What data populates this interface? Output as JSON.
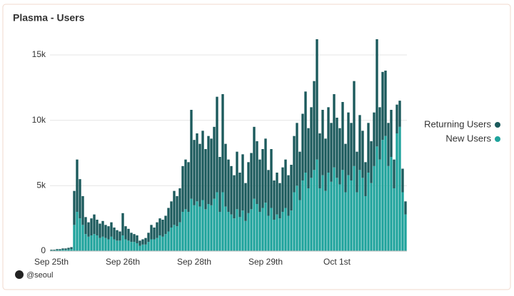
{
  "chart_data": {
    "type": "stacked_bar",
    "title": "Plasma - Users",
    "footer": "@seoul",
    "categories": [
      "Sep 25th",
      null,
      null,
      null,
      null,
      null,
      null,
      null,
      null,
      null,
      null,
      null,
      null,
      null,
      null,
      null,
      null,
      null,
      null,
      null,
      null,
      null,
      null,
      null,
      null,
      "Sep 26th",
      null,
      null,
      null,
      null,
      null,
      null,
      null,
      null,
      null,
      null,
      null,
      null,
      null,
      null,
      null,
      null,
      null,
      null,
      null,
      null,
      null,
      null,
      null,
      null,
      "Sep 28th",
      null,
      null,
      null,
      null,
      null,
      null,
      null,
      null,
      null,
      null,
      null,
      null,
      null,
      null,
      null,
      null,
      null,
      null,
      null,
      null,
      null,
      null,
      null,
      null,
      "Sep 29th",
      null,
      null,
      null,
      null,
      null,
      null,
      null,
      null,
      null,
      null,
      null,
      null,
      null,
      null,
      null,
      null,
      null,
      null,
      null,
      null,
      null,
      null,
      null,
      null,
      "Oct 1st",
      null,
      null,
      null,
      null,
      null,
      null,
      null,
      null,
      null,
      null,
      null,
      null,
      null,
      null,
      null,
      null,
      null,
      null,
      null,
      null,
      null,
      null,
      null,
      null
    ],
    "series": [
      {
        "name": "New Users",
        "color": "#1fa39c",
        "values": [
          50,
          50,
          80,
          80,
          100,
          100,
          120,
          150,
          2000,
          3000,
          2500,
          2000,
          1300,
          1100,
          1200,
          1300,
          1200,
          1000,
          1100,
          1000,
          900,
          1100,
          900,
          800,
          800,
          1200,
          900,
          800,
          700,
          700,
          600,
          400,
          500,
          500,
          700,
          900,
          900,
          1000,
          1200,
          1100,
          1300,
          1500,
          1800,
          2000,
          1900,
          2200,
          3000,
          3200,
          3000,
          4000,
          3500,
          3800,
          3400,
          3900,
          3200,
          3600,
          3500,
          4000,
          4500,
          3000,
          4500,
          3400,
          3000,
          2800,
          2500,
          3200,
          2600,
          3100,
          2300,
          2900,
          3200,
          4000,
          3600,
          3000,
          3300,
          3700,
          2700,
          3300,
          2400,
          2800,
          2500,
          3000,
          3300,
          2700,
          3100,
          4500,
          5000,
          3900,
          5400,
          6000,
          4800,
          5600,
          6200,
          7000,
          4800,
          5800,
          4600,
          6000,
          5300,
          6400,
          5600,
          5100,
          6200,
          4500,
          5800,
          5400,
          6500,
          4500,
          6200,
          5600,
          4200,
          6000,
          5200,
          6500,
          8000,
          7000,
          8500,
          8800,
          6500,
          7200,
          4800,
          9000,
          9500,
          4500,
          2800
        ]
      },
      {
        "name": "Returning Users",
        "color": "#1b5a5c",
        "values": [
          50,
          50,
          70,
          70,
          100,
          100,
          130,
          150,
          2600,
          4000,
          3000,
          2200,
          1300,
          1100,
          1300,
          1500,
          1200,
          1100,
          1200,
          1000,
          1000,
          1100,
          900,
          800,
          700,
          1700,
          1000,
          900,
          700,
          600,
          600,
          400,
          400,
          500,
          700,
          1100,
          900,
          1200,
          1300,
          1300,
          1400,
          1800,
          2000,
          2600,
          2300,
          2600,
          3500,
          3800,
          3800,
          6800,
          5000,
          5200,
          4800,
          5300,
          4600,
          5200,
          5100,
          5500,
          7300,
          4200,
          7500,
          4800,
          4000,
          3700,
          3300,
          4400,
          3400,
          4300,
          2900,
          3900,
          4300,
          5500,
          4800,
          4000,
          4500,
          4900,
          3500,
          4500,
          3000,
          3200,
          2700,
          3400,
          3700,
          3100,
          3500,
          4300,
          4800,
          3700,
          5100,
          6200,
          4600,
          5400,
          6800,
          9200,
          4200,
          5000,
          4000,
          5000,
          4500,
          5600,
          4600,
          4300,
          5200,
          3700,
          4800,
          4400,
          6500,
          3100,
          4200,
          3600,
          2600,
          3800,
          3200,
          4100,
          8200,
          4000,
          5200,
          5000,
          3300,
          3600,
          2200,
          2200,
          2000,
          1800,
          1000
        ]
      }
    ],
    "ylim": [
      0,
      16500
    ],
    "yticks": [
      0,
      {
        "value": 5000,
        "label": "5k"
      },
      {
        "value": 10000,
        "label": "10k"
      },
      {
        "value": 15000,
        "label": "15k"
      }
    ],
    "grid": true,
    "legend": "right"
  }
}
